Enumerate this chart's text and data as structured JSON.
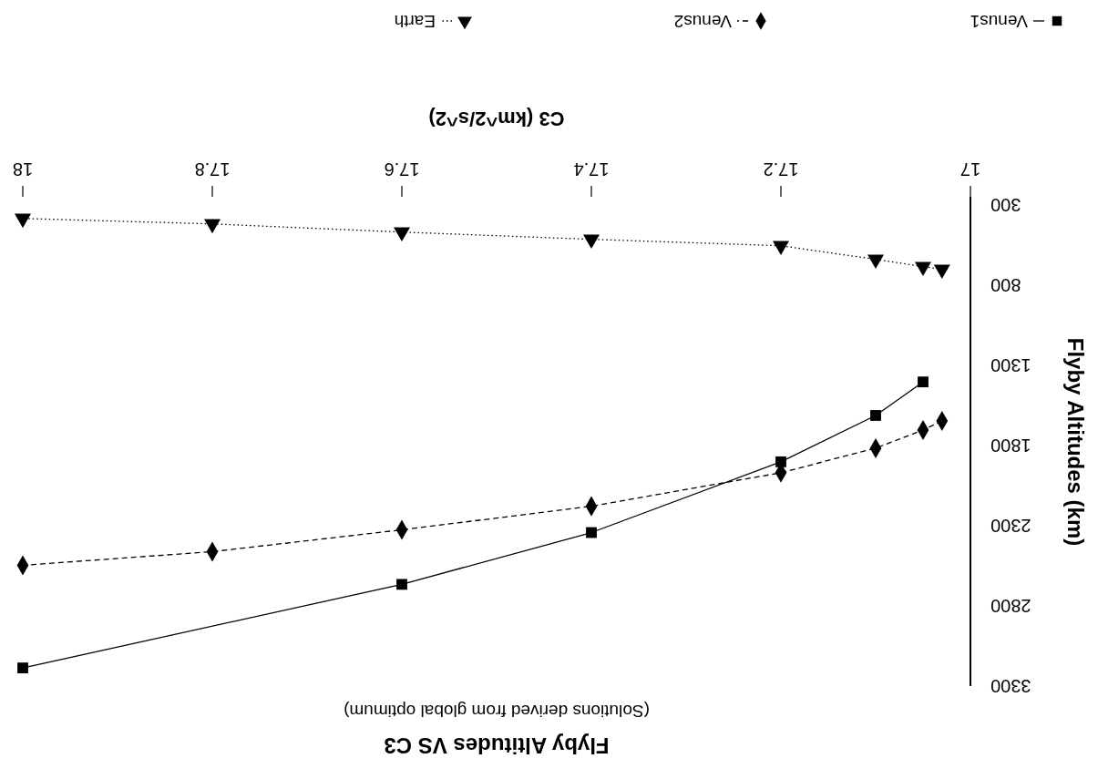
{
  "chart_data": {
    "type": "line",
    "title": "Flyby Altitudes VS C3",
    "subtitle": "(Solutions derived from global optimum)",
    "xlabel": "C3 (km^2/s^2)",
    "ylabel": "Flyby Altitudes (km)",
    "xlim": [
      18,
      17
    ],
    "xticks": [
      17,
      17.2,
      17.4,
      17.6,
      17.8,
      18
    ],
    "ylim": [
      3300,
      250
    ],
    "yticks": [
      300,
      800,
      1300,
      1800,
      2300,
      2800,
      3300
    ],
    "legend": "top",
    "series": [
      {
        "name": "Venus1",
        "color": "#000000",
        "marker": "square",
        "line_style": "solid",
        "x": [
          17.05,
          17.1,
          17.2,
          17.4,
          17.6,
          18
        ],
        "values": [
          1404,
          1613,
          1902,
          2343,
          2666,
          3187
        ]
      },
      {
        "name": "Venus2",
        "color": "#000000",
        "marker": "diamond",
        "line_style": "dashed",
        "x": [
          17.03,
          17.05,
          17.1,
          17.2,
          17.4,
          17.6,
          17.8,
          18
        ],
        "values": [
          1647,
          1704,
          1817,
          1970,
          2179,
          2326,
          2462,
          2547
        ]
      },
      {
        "name": "Earth",
        "color": "#000000",
        "marker": "triangle",
        "line_style": "dotted",
        "x": [
          17.03,
          17.05,
          17.1,
          17.2,
          17.4,
          17.6,
          17.8,
          18
        ],
        "values": [
          702,
          685,
          640,
          555,
          515,
          470,
          419,
          385
        ]
      }
    ]
  }
}
